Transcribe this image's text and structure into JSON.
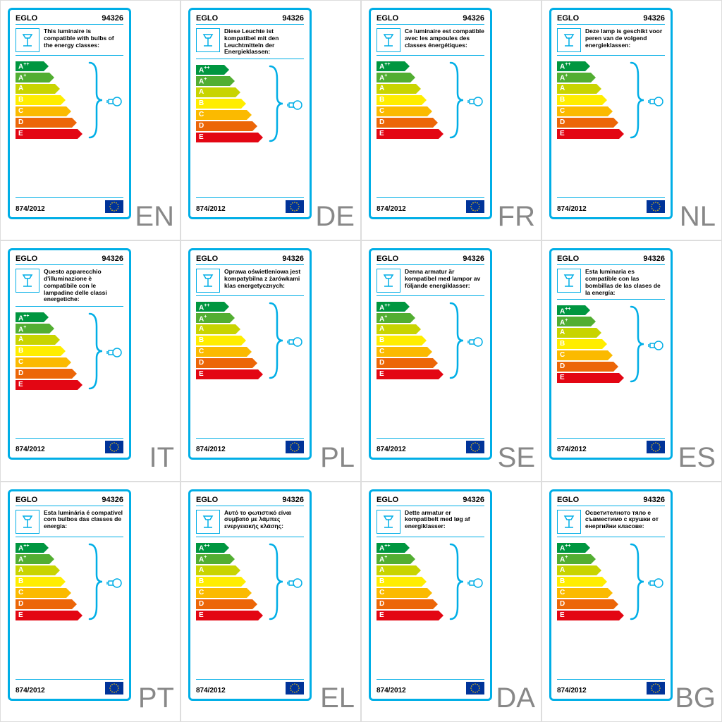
{
  "brand": "EGLO",
  "model": "94326",
  "regulation": "874/2012",
  "energy_classes": [
    {
      "label": "A",
      "sup": "++",
      "width": 40,
      "color": "#009640"
    },
    {
      "label": "A",
      "sup": "+",
      "width": 48,
      "color": "#52ae32"
    },
    {
      "label": "A",
      "sup": "",
      "width": 56,
      "color": "#c8d400"
    },
    {
      "label": "B",
      "sup": "",
      "width": 64,
      "color": "#ffed00"
    },
    {
      "label": "C",
      "sup": "",
      "width": 72,
      "color": "#fbba00"
    },
    {
      "label": "D",
      "sup": "",
      "width": 80,
      "color": "#ec6608"
    },
    {
      "label": "E",
      "sup": "",
      "width": 88,
      "color": "#e30613"
    }
  ],
  "accent_color": "#00aee6",
  "eu_flag": {
    "bg": "#003399",
    "star": "#ffcc00"
  },
  "labels": [
    {
      "lang": "EN",
      "text": "This luminaire is compatible with bulbs of the energy classes:"
    },
    {
      "lang": "DE",
      "text": "Diese Leuchte ist kompatibel mit den Leuchtmitteln der Energieklassen:"
    },
    {
      "lang": "FR",
      "text": "Ce luminaire est compatible avec les ampoules des classes énergétiques:"
    },
    {
      "lang": "NL",
      "text": "Deze lamp is geschikt voor peren van de volgend energieklassen:"
    },
    {
      "lang": "IT",
      "text": "Questo apparecchio d'illuminazione è compatibile con le lampadine delle classi energetiche:"
    },
    {
      "lang": "PL",
      "text": "Oprawa oświetleniowa jest kompatybilna z żarówkami klas energetycznych:"
    },
    {
      "lang": "SE",
      "text": "Denna armatur är kompatibel med lampor av följande energiklasser:"
    },
    {
      "lang": "ES",
      "text": "Esta luminaria es compatible con las bombillas de las clases de la energía:"
    },
    {
      "lang": "PT",
      "text": "Esta luminária é compatível com bulbos das classes de energia:"
    },
    {
      "lang": "EL",
      "text": "Αυτό το φωτιστικό είναι συμβατό με λάμπες ενεργειακής κλάσης:"
    },
    {
      "lang": "DA",
      "text": "Dette armatur er kompatibelt med løg af energiklasser:"
    },
    {
      "lang": "BG",
      "text": "Осветителното тяло е съвместимо с крушки от енергийни класове:"
    }
  ]
}
